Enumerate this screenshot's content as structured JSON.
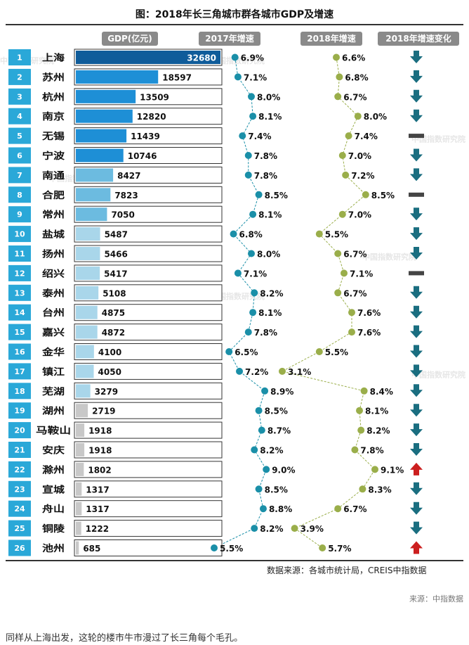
{
  "page": {
    "title": "图：2018年长三角城市群各城市GDP及增速",
    "source": "数据来源：各城市统计局，CREIS中指数据",
    "source2": "来源：中指数据",
    "caption": "同样从上海出发，这轮的楼市牛市漫过了长三角每个毛孔。",
    "watermark": "中国指数研究院"
  },
  "chart_data": {
    "type": "table",
    "title": "图：2018年长三角城市群各城市GDP及增速",
    "columns": [
      "GDP(亿元)",
      "2017年增速",
      "2018年增速",
      "2018年增速变化"
    ],
    "ranks": [
      1,
      2,
      3,
      4,
      5,
      6,
      7,
      8,
      9,
      10,
      11,
      12,
      13,
      14,
      15,
      16,
      17,
      18,
      19,
      20,
      21,
      22,
      23,
      24,
      25,
      26
    ],
    "cities": [
      "上海",
      "苏州",
      "杭州",
      "南京",
      "无锡",
      "宁波",
      "南通",
      "合肥",
      "常州",
      "盐城",
      "扬州",
      "绍兴",
      "泰州",
      "台州",
      "嘉兴",
      "金华",
      "镇江",
      "芜湖",
      "湖州",
      "马鞍山",
      "安庆",
      "滁州",
      "宣城",
      "舟山",
      "铜陵",
      "池州"
    ],
    "gdp": [
      32680,
      18597,
      13509,
      12820,
      11439,
      10746,
      8427,
      7823,
      7050,
      5487,
      5466,
      5417,
      5108,
      4875,
      4872,
      4100,
      4050,
      3279,
      2719,
      1918,
      1918,
      1802,
      1317,
      1317,
      1222,
      685
    ],
    "growth_2017": [
      6.9,
      7.1,
      8.0,
      8.1,
      7.4,
      7.8,
      7.8,
      8.5,
      8.1,
      6.8,
      8.0,
      7.1,
      8.2,
      8.1,
      7.8,
      6.5,
      7.2,
      8.9,
      8.5,
      8.7,
      8.2,
      9.0,
      8.5,
      8.8,
      8.2,
      5.5
    ],
    "growth_2018": [
      6.6,
      6.8,
      6.7,
      8.0,
      7.4,
      7.0,
      7.2,
      8.5,
      7.0,
      5.5,
      6.7,
      7.1,
      6.7,
      7.6,
      7.6,
      5.5,
      3.1,
      8.4,
      8.1,
      8.2,
      7.8,
      9.1,
      8.3,
      6.7,
      3.9,
      5.7
    ],
    "change": [
      "down",
      "down",
      "down",
      "down",
      "flat",
      "down",
      "down",
      "flat",
      "down",
      "down",
      "down",
      "flat",
      "down",
      "down",
      "down",
      "down",
      "down",
      "down",
      "down",
      "down",
      "down",
      "up",
      "down",
      "down",
      "down",
      "up"
    ],
    "colors": {
      "rank_box": "#2aa8d8",
      "growth_2017": "#1a8fa8",
      "growth_2018": "#9aae4a",
      "arrow_down": "#1a6e80",
      "arrow_up": "#cc1f1f",
      "flat": "#444444",
      "header": "#8a8a8a"
    }
  }
}
